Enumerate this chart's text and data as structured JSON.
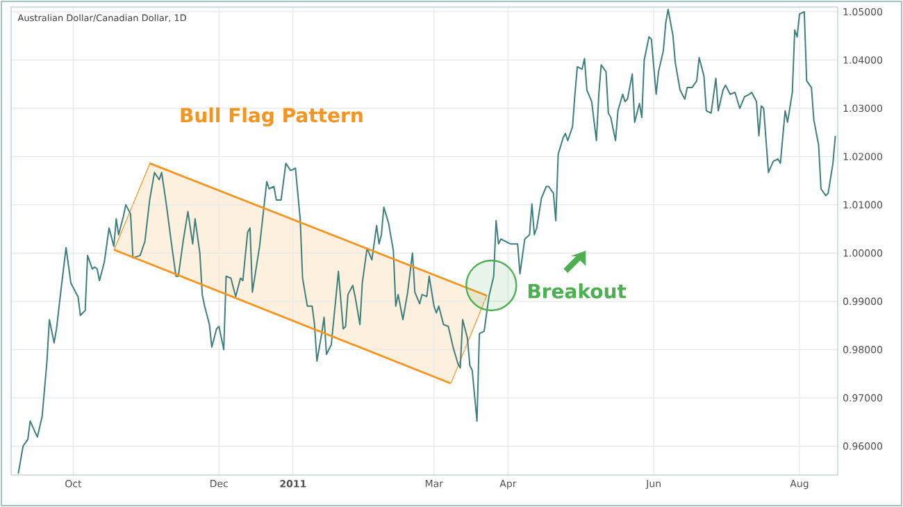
{
  "chart_data": {
    "type": "line",
    "title": "Australian Dollar/Canadian Dollar, 1D",
    "annotations": [
      "Bull Flag Pattern",
      {
        "text": "Breakout",
        "x": "2011-03-25",
        "y": 0.9933
      }
    ],
    "xlim": [
      "2010-09-05",
      "2011-08-17"
    ],
    "ylim": [
      0.954,
      1.051
    ],
    "xticks": [
      {
        "value": "2010-10-01",
        "label": "Oct"
      },
      {
        "value": "2010-12-01",
        "label": "Dec"
      },
      {
        "value": "2011-01-01",
        "label": "**2011**"
      },
      {
        "value": "2011-03-01",
        "label": "Mar"
      },
      {
        "value": "2011-04-01",
        "label": "Apr"
      },
      {
        "value": "2011-06-01",
        "label": "Jun"
      },
      {
        "value": "2011-08-01",
        "label": "Aug"
      }
    ],
    "yticks": [
      {
        "value": 0.96,
        "label": "0.96000"
      },
      {
        "value": 0.97,
        "label": "0.97000"
      },
      {
        "value": 0.98,
        "label": "0.98000"
      },
      {
        "value": 0.99,
        "label": "0.99000"
      },
      {
        "value": 1.0,
        "label": "1.00000"
      },
      {
        "value": 1.01,
        "label": "1.01000"
      },
      {
        "value": 1.02,
        "label": "1.02000"
      },
      {
        "value": 1.03,
        "label": "1.03000"
      },
      {
        "value": 1.04,
        "label": "1.04000"
      },
      {
        "value": 1.05,
        "label": "1.05000"
      }
    ],
    "grid": true,
    "marker": "none",
    "line_style": "solid",
    "series": [
      {
        "color": "#3d7f7c",
        "x": [
          "2010-09-08",
          "2010-09-10",
          "2010-09-12",
          "2010-09-13",
          "2010-09-15",
          "2010-09-16",
          "2010-09-18",
          "2010-09-20",
          "2010-09-21",
          "2010-09-23",
          "2010-09-24",
          "2010-09-26",
          "2010-09-28",
          "2010-09-30",
          "2010-10-02",
          "2010-10-03",
          "2010-10-04",
          "2010-10-06",
          "2010-10-07",
          "2010-10-09",
          "2010-10-10",
          "2010-10-11",
          "2010-10-12",
          "2010-10-14",
          "2010-10-16",
          "2010-10-18",
          "2010-10-19",
          "2010-10-20",
          "2010-10-22",
          "2010-10-23",
          "2010-10-25",
          "2010-10-26",
          "2010-10-29",
          "2010-10-31",
          "2010-11-02",
          "2010-11-04",
          "2010-11-06",
          "2010-11-07",
          "2010-11-09",
          "2010-11-11",
          "2010-11-13",
          "2010-11-14",
          "2010-11-16",
          "2010-11-18",
          "2010-11-20",
          "2010-11-21",
          "2010-11-23",
          "2010-11-24",
          "2010-11-25",
          "2010-11-27",
          "2010-11-28",
          "2010-11-30",
          "2010-12-01",
          "2010-12-03",
          "2010-12-04",
          "2010-12-06",
          "2010-12-08",
          "2010-12-10",
          "2010-12-11",
          "2010-12-13",
          "2010-12-14",
          "2010-12-15",
          "2010-12-18",
          "2010-12-21",
          "2010-12-22",
          "2010-12-24",
          "2010-12-25",
          "2010-12-27",
          "2010-12-29",
          "2010-12-31",
          "2011-01-02",
          "2011-01-04",
          "2011-01-05",
          "2011-01-07",
          "2011-01-09",
          "2011-01-10",
          "2011-01-11",
          "2011-01-13",
          "2011-01-14",
          "2011-01-15",
          "2011-01-17",
          "2011-01-19",
          "2011-01-20",
          "2011-01-22",
          "2011-01-23",
          "2011-01-24",
          "2011-01-26",
          "2011-01-27",
          "2011-01-29",
          "2011-01-30",
          "2011-02-01",
          "2011-02-03",
          "2011-02-05",
          "2011-02-06",
          "2011-02-07",
          "2011-02-08",
          "2011-02-10",
          "2011-02-12",
          "2011-02-13",
          "2011-02-14",
          "2011-02-16",
          "2011-02-18",
          "2011-02-20",
          "2011-02-21",
          "2011-02-23",
          "2011-02-24",
          "2011-02-26",
          "2011-02-27",
          "2011-03-01",
          "2011-03-02",
          "2011-03-03",
          "2011-03-05",
          "2011-03-07",
          "2011-03-09",
          "2011-03-11",
          "2011-03-12",
          "2011-03-13",
          "2011-03-15",
          "2011-03-16",
          "2011-03-17",
          "2011-03-19",
          "2011-03-20",
          "2011-03-22",
          "2011-03-24",
          "2011-03-26",
          "2011-03-27",
          "2011-03-28",
          "2011-03-29",
          "2011-03-31",
          "2011-04-02",
          "2011-04-05",
          "2011-04-06",
          "2011-04-08",
          "2011-04-10",
          "2011-04-11",
          "2011-04-12",
          "2011-04-13",
          "2011-04-15",
          "2011-04-17",
          "2011-04-18",
          "2011-04-20",
          "2011-04-21",
          "2011-04-22",
          "2011-04-24",
          "2011-04-25",
          "2011-04-26",
          "2011-04-28",
          "2011-04-29",
          "2011-04-30",
          "2011-05-02",
          "2011-05-03",
          "2011-05-04",
          "2011-05-06",
          "2011-05-08",
          "2011-05-09",
          "2011-05-10",
          "2011-05-12",
          "2011-05-13",
          "2011-05-14",
          "2011-05-16",
          "2011-05-17",
          "2011-05-19",
          "2011-05-20",
          "2011-05-21",
          "2011-05-23",
          "2011-05-24",
          "2011-05-26",
          "2011-05-27",
          "2011-05-28",
          "2011-05-30",
          "2011-05-31",
          "2011-06-02",
          "2011-06-03",
          "2011-06-05",
          "2011-06-06",
          "2011-06-07",
          "2011-06-09",
          "2011-06-10",
          "2011-06-12",
          "2011-06-14",
          "2011-06-15",
          "2011-06-17",
          "2011-06-19",
          "2011-06-20",
          "2011-06-22",
          "2011-06-23",
          "2011-06-25",
          "2011-06-27",
          "2011-06-28",
          "2011-06-30",
          "2011-07-01",
          "2011-07-03",
          "2011-07-05",
          "2011-07-07",
          "2011-07-09",
          "2011-07-11",
          "2011-07-12",
          "2011-07-14",
          "2011-07-15",
          "2011-07-16",
          "2011-07-17",
          "2011-07-19",
          "2011-07-21",
          "2011-07-23",
          "2011-07-24",
          "2011-07-26",
          "2011-07-27",
          "2011-07-29",
          "2011-07-30",
          "2011-07-31",
          "2011-08-01",
          "2011-08-03",
          "2011-08-04",
          "2011-08-06",
          "2011-08-07",
          "2011-08-09",
          "2011-08-10",
          "2011-08-12",
          "2011-08-13",
          "2011-08-15",
          "2011-08-16"
        ],
        "values": [
          0.9543,
          0.96,
          0.9614,
          0.9652,
          0.9629,
          0.9619,
          0.9662,
          0.9776,
          0.9862,
          0.9814,
          0.9843,
          0.9929,
          1.0011,
          0.9938,
          0.9919,
          0.991,
          0.9871,
          0.9881,
          0.9995,
          0.9967,
          0.9971,
          0.9967,
          0.9943,
          0.9981,
          1.0052,
          1.0014,
          1.0071,
          1.0038,
          1.0076,
          1.01,
          1.0081,
          0.999,
          0.9995,
          1.0024,
          1.011,
          1.0167,
          1.0152,
          1.0167,
          1.01,
          1.0024,
          0.9952,
          0.9952,
          1.0024,
          1.0086,
          1.0019,
          1.0071,
          1.0,
          0.9914,
          0.989,
          0.9852,
          0.9805,
          0.9843,
          0.9848,
          0.98,
          0.9952,
          0.9948,
          0.991,
          0.9948,
          0.9943,
          1.0043,
          1.0052,
          0.9919,
          1.0014,
          1.0148,
          1.0133,
          1.0138,
          1.011,
          1.011,
          1.0186,
          1.0171,
          1.0176,
          1.0071,
          0.9948,
          0.989,
          0.989,
          0.9852,
          0.9776,
          0.9833,
          0.9867,
          0.979,
          0.981,
          0.991,
          0.9962,
          0.9843,
          0.9848,
          0.9914,
          0.9933,
          0.991,
          0.9852,
          0.9938,
          1.001,
          0.9986,
          1.0057,
          1.0019,
          1.0038,
          1.0095,
          1.0062,
          1.0005,
          0.989,
          0.9914,
          0.9862,
          0.9919,
          1.0,
          0.9919,
          0.9895,
          0.9914,
          0.991,
          0.9952,
          0.989,
          0.9876,
          0.989,
          0.9852,
          0.9848,
          0.9805,
          0.9771,
          0.9762,
          0.9862,
          0.9824,
          0.9767,
          0.9757,
          0.9652,
          0.9833,
          0.9838,
          0.991,
          0.9952,
          1.0067,
          1.0019,
          1.0029,
          1.0024,
          1.0019,
          1.0019,
          0.9957,
          1.0029,
          1.0038,
          1.0102,
          1.0038,
          1.0052,
          1.0114,
          1.0138,
          1.0138,
          1.0124,
          1.0067,
          1.0205,
          1.0238,
          1.0248,
          1.0233,
          1.0262,
          1.0329,
          1.0386,
          1.0381,
          1.0403,
          1.0338,
          1.0314,
          1.0233,
          1.0329,
          1.039,
          1.0376,
          1.029,
          1.0281,
          1.0233,
          1.0295,
          1.0329,
          1.0314,
          1.0319,
          1.0371,
          1.0271,
          1.031,
          1.0281,
          1.04,
          1.0448,
          1.0443,
          1.0329,
          1.0376,
          1.0419,
          1.0476,
          1.0505,
          1.0452,
          1.0395,
          1.0338,
          1.0319,
          1.0343,
          1.0343,
          1.0357,
          1.0405,
          1.0367,
          1.0295,
          1.029,
          1.0362,
          1.0295,
          1.0338,
          1.0348,
          1.0329,
          1.0333,
          1.03,
          1.0324,
          1.0329,
          1.0333,
          1.0314,
          1.0243,
          1.0305,
          1.03,
          1.0167,
          1.019,
          1.0195,
          1.0186,
          1.0295,
          1.0271,
          1.0333,
          1.0462,
          1.0448,
          1.0495,
          1.05,
          1.0357,
          1.0343,
          1.0276,
          1.0224,
          1.0133,
          1.0119,
          1.0124,
          1.0186,
          1.0243
        ]
      },
      {
        "type": "line",
        "color": "#f7941d",
        "x": [
          "2010-11-02",
          "2011-03-23"
        ],
        "values": [
          1.0186,
          0.9912
        ]
      },
      {
        "type": "line",
        "color": "#f7941d",
        "x": [
          "2010-10-18",
          "2011-03-08"
        ],
        "values": [
          1.0007,
          0.973
        ]
      }
    ]
  }
}
